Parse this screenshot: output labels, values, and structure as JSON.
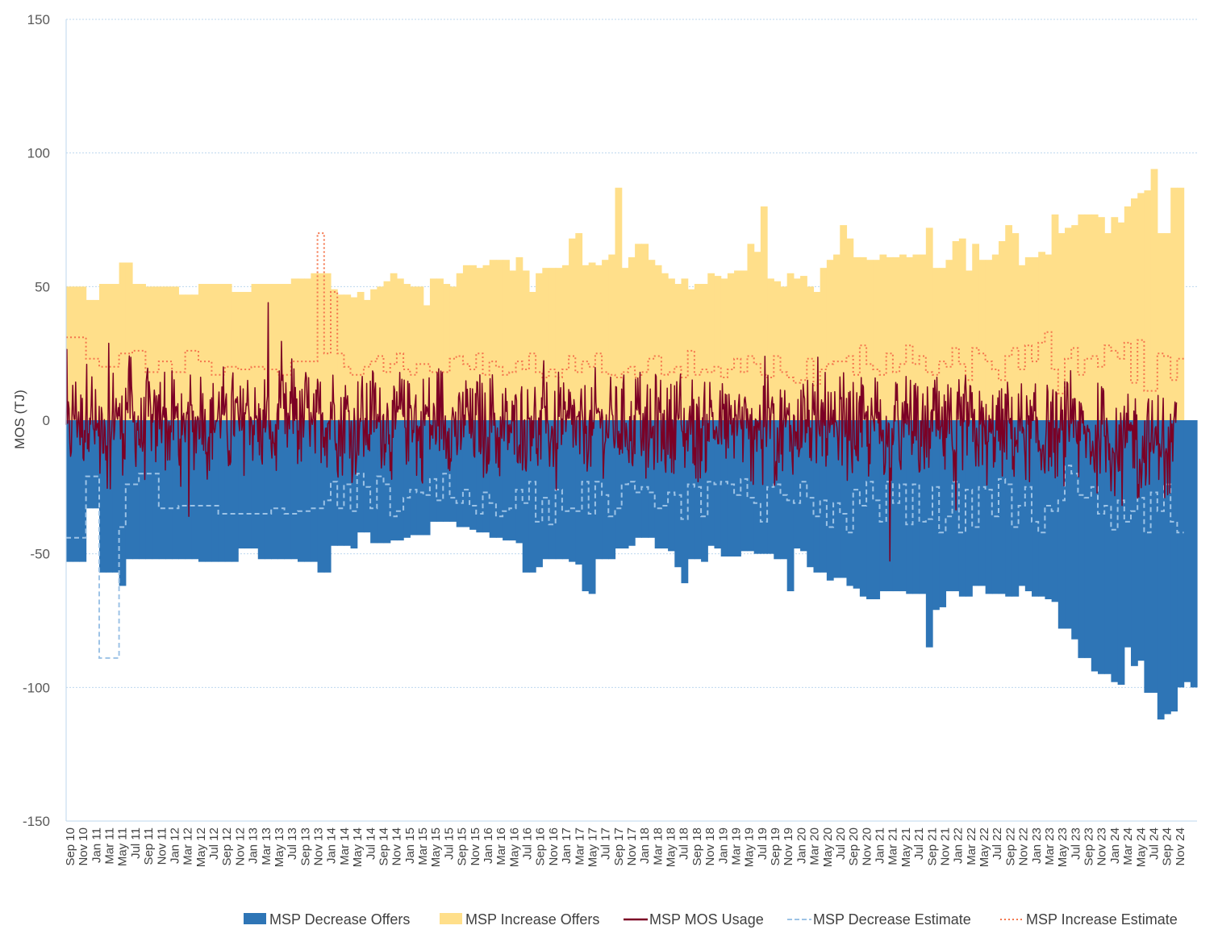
{
  "chart_data": {
    "type": "area",
    "title": "",
    "xlabel": "",
    "ylabel": "MOS (TJ)",
    "ylim": [
      -150,
      150
    ],
    "yticks": [
      150,
      100,
      50,
      0,
      -50,
      -100,
      -150
    ],
    "grid": true,
    "legend_position": "bottom-right",
    "x_tick_labels": [
      "Sep 10",
      "Nov 10",
      "Jan 11",
      "Mar 11",
      "May 11",
      "Jul 11",
      "Sep 11",
      "Nov 11",
      "Jan 12",
      "Mar 12",
      "May 12",
      "Jul 12",
      "Sep 12",
      "Nov 12",
      "Jan 13",
      "Mar 13",
      "May 13",
      "Jul 13",
      "Sep 13",
      "Nov 13",
      "Jan 14",
      "Mar 14",
      "May 14",
      "Jul 14",
      "Sep 14",
      "Nov 14",
      "Jan 15",
      "Mar 15",
      "May 15",
      "Jul 15",
      "Sep 15",
      "Nov 15",
      "Jan 16",
      "Mar 16",
      "May 16",
      "Jul 16",
      "Sep 16",
      "Nov 16",
      "Jan 17",
      "Mar 17",
      "May 17",
      "Jul 17",
      "Sep 17",
      "Nov 17",
      "Jan 18",
      "Mar 18",
      "May 18",
      "Jul 18",
      "Sep 18",
      "Nov 18",
      "Jan 19",
      "Mar 19",
      "May 19",
      "Jul 19",
      "Sep 19",
      "Nov 19",
      "Jan 20",
      "Mar 20",
      "May 20",
      "Jul 20",
      "Sep 20",
      "Nov 20",
      "Jan 21",
      "Mar 21",
      "May 21",
      "Jul 21",
      "Sep 21",
      "Nov 21",
      "Jan 22",
      "Mar 22",
      "May 22",
      "Jul 22",
      "Sep 22",
      "Nov 22",
      "Jan 23",
      "Mar 23",
      "May 23",
      "Jul 23",
      "Sep 23",
      "Nov 23",
      "Jan 24",
      "Mar 24",
      "May 24",
      "Jul 24",
      "Sep 24",
      "Nov 24"
    ],
    "series": [
      {
        "name": "MSP Decrease Offers",
        "style": "area",
        "color": "#2E75B6",
        "values": [
          -53,
          -53,
          -53,
          -33,
          -33,
          -57,
          -57,
          -57,
          -62,
          -52,
          -52,
          -52,
          -52,
          -52,
          -52,
          -52,
          -52,
          -52,
          -52,
          -52,
          -53,
          -53,
          -53,
          -53,
          -53,
          -53,
          -48,
          -48,
          -48,
          -52,
          -52,
          -52,
          -52,
          -52,
          -52,
          -53,
          -53,
          -53,
          -57,
          -57,
          -47,
          -47,
          -47,
          -48,
          -42,
          -42,
          -46,
          -46,
          -46,
          -45,
          -45,
          -44,
          -43,
          -43,
          -43,
          -38,
          -38,
          -38,
          -38,
          -40,
          -40,
          -41,
          -42,
          -42,
          -44,
          -44,
          -45,
          -45,
          -46,
          -57,
          -57,
          -55,
          -52,
          -52,
          -52,
          -52,
          -53,
          -54,
          -64,
          -65,
          -52,
          -52,
          -52,
          -48,
          -48,
          -47,
          -44,
          -44,
          -44,
          -48,
          -48,
          -49,
          -55,
          -61,
          -52,
          -52,
          -53,
          -47,
          -48,
          -51,
          -51,
          -51,
          -49,
          -49,
          -50,
          -50,
          -50,
          -52,
          -52,
          -64,
          -48,
          -49,
          -55,
          -57,
          -57,
          -60,
          -59,
          -59,
          -62,
          -63,
          -66,
          -67,
          -67,
          -64,
          -64,
          -64,
          -64,
          -65,
          -65,
          -65,
          -85,
          -71,
          -70,
          -64,
          -64,
          -66,
          -66,
          -62,
          -62,
          -65,
          -65,
          -65,
          -66,
          -66,
          -62,
          -64,
          -66,
          -66,
          -67,
          -68,
          -78,
          -78,
          -82,
          -89,
          -89,
          -94,
          -95,
          -95,
          -98,
          -99,
          -85,
          -92,
          -90,
          -102,
          -102,
          -112,
          -110,
          -109,
          -100,
          -98,
          -100
        ]
      },
      {
        "name": "MSP Increase Offers",
        "style": "area",
        "color": "#FFDF8A",
        "values": [
          50,
          50,
          50,
          45,
          45,
          51,
          51,
          51,
          59,
          59,
          51,
          51,
          50,
          50,
          50,
          50,
          50,
          47,
          47,
          47,
          51,
          51,
          51,
          51,
          51,
          48,
          48,
          48,
          51,
          51,
          51,
          51,
          51,
          51,
          53,
          53,
          53,
          55,
          55,
          55,
          49,
          47,
          47,
          46,
          48,
          45,
          49,
          50,
          52,
          55,
          53,
          51,
          50,
          50,
          43,
          53,
          53,
          51,
          50,
          55,
          58,
          58,
          57,
          58,
          60,
          60,
          60,
          56,
          61,
          56,
          48,
          55,
          57,
          57,
          57,
          58,
          68,
          70,
          58,
          59,
          58,
          60,
          62,
          87,
          57,
          61,
          66,
          66,
          60,
          58,
          55,
          53,
          51,
          53,
          49,
          51,
          51,
          55,
          54,
          53,
          55,
          56,
          56,
          66,
          63,
          80,
          53,
          52,
          50,
          55,
          53,
          54,
          50,
          48,
          57,
          60,
          62,
          73,
          68,
          61,
          61,
          60,
          60,
          62,
          61,
          61,
          62,
          61,
          62,
          62,
          72,
          57,
          57,
          60,
          67,
          68,
          56,
          66,
          60,
          60,
          62,
          67,
          73,
          70,
          58,
          61,
          61,
          63,
          62,
          77,
          70,
          72,
          73,
          77,
          77,
          77,
          76,
          70,
          76,
          74,
          80,
          83,
          85,
          86,
          94,
          70,
          70,
          87,
          87
        ]
      },
      {
        "name": "MSP Decrease Estimate",
        "style": "dashed",
        "color": "#9DC3E6",
        "values": [
          -44,
          -44,
          -44,
          -21,
          -21,
          -89,
          -89,
          -89,
          -40,
          -24,
          -24,
          -20,
          -20,
          -20,
          -33,
          -33,
          -33,
          -32,
          -32,
          -32,
          -32,
          -32,
          -32,
          -35,
          -35,
          -35,
          -35,
          -35,
          -35,
          -35,
          -35,
          -33,
          -33,
          -35,
          -35,
          -34,
          -34,
          -33,
          -33,
          -30,
          -23,
          -33,
          -24,
          -34,
          -20,
          -25,
          -33,
          -21,
          -24,
          -36,
          -34,
          -29,
          -26,
          -27,
          -28,
          -22,
          -30,
          -20,
          -29,
          -31,
          -26,
          -32,
          -35,
          -27,
          -31,
          -36,
          -34,
          -33,
          -26,
          -31,
          -23,
          -38,
          -29,
          -39,
          -26,
          -34,
          -33,
          -34,
          -23,
          -35,
          -23,
          -28,
          -36,
          -33,
          -24,
          -23,
          -27,
          -25,
          -27,
          -33,
          -32,
          -27,
          -28,
          -37,
          -24,
          -25,
          -36,
          -23,
          -24,
          -23,
          -24,
          -28,
          -22,
          -29,
          -31,
          -38,
          -25,
          -24,
          -28,
          -30,
          -31,
          -23,
          -29,
          -36,
          -30,
          -40,
          -31,
          -35,
          -42,
          -26,
          -32,
          -23,
          -30,
          -38,
          -23,
          -31,
          -24,
          -39,
          -24,
          -38,
          -37,
          -25,
          -42,
          -36,
          -23,
          -42,
          -26,
          -40,
          -25,
          -26,
          -36,
          -22,
          -24,
          -40,
          -32,
          -25,
          -38,
          -42,
          -32,
          -34,
          -30,
          -17,
          -20,
          -28,
          -29,
          -25,
          -35,
          -32,
          -41,
          -30,
          -38,
          -34,
          -29,
          -42,
          -27,
          -34,
          -24,
          -38,
          -42
        ]
      },
      {
        "name": "MSP Increase Estimate",
        "style": "dotted",
        "color": "#F4764D",
        "values": [
          31,
          31,
          31,
          23,
          23,
          20,
          20,
          20,
          25,
          25,
          26,
          26,
          18,
          18,
          22,
          22,
          18,
          18,
          26,
          26,
          22,
          22,
          17,
          17,
          20,
          20,
          19,
          19,
          20,
          20,
          19,
          19,
          17,
          17,
          22,
          22,
          22,
          22,
          70,
          25,
          48,
          25,
          20,
          17,
          17,
          20,
          22,
          24,
          18,
          21,
          25,
          19,
          17,
          21,
          21,
          18,
          17,
          18,
          23,
          24,
          21,
          19,
          25,
          17,
          22,
          20,
          17,
          18,
          22,
          19,
          25,
          18,
          16,
          19,
          16,
          19,
          24,
          18,
          22,
          20,
          25,
          18,
          17,
          16,
          18,
          20,
          16,
          18,
          23,
          24,
          17,
          18,
          20,
          16,
          26,
          17,
          19,
          18,
          20,
          16,
          19,
          23,
          18,
          24,
          21,
          17,
          16,
          24,
          18,
          16,
          14,
          15,
          23,
          13,
          19,
          21,
          22,
          22,
          24,
          17,
          28,
          21,
          19,
          17,
          25,
          18,
          21,
          28,
          21,
          24,
          18,
          17,
          22,
          20,
          27,
          21,
          15,
          27,
          25,
          22,
          19,
          15,
          24,
          27,
          19,
          28,
          22,
          29,
          33,
          19,
          10,
          23,
          27,
          17,
          23,
          24,
          20,
          28,
          26,
          23,
          29,
          14,
          30,
          11,
          11,
          25,
          24,
          15,
          23
        ]
      },
      {
        "name": "MSP MOS Usage",
        "style": "line",
        "color": "#7B0025",
        "values": [
          -5,
          3,
          -2,
          6,
          -4,
          1,
          -8,
          4,
          -3,
          7,
          -1,
          -6,
          2,
          -4,
          5,
          -3,
          1,
          -7,
          3,
          -2,
          6,
          -5,
          0,
          4,
          -6,
          2,
          -3,
          5,
          -1,
          -4,
          3,
          -7,
          1,
          -2,
          6,
          -3,
          4,
          -5,
          2,
          -1,
          5,
          -4,
          3,
          -6,
          1,
          -3,
          4,
          -2,
          0,
          -5,
          3,
          -1,
          4,
          -6,
          2,
          -3,
          5,
          -2,
          -1,
          -6,
          3,
          -4,
          1,
          -5,
          2,
          -7,
          -2,
          -4,
          0,
          -3,
          2,
          -6,
          -1,
          -5,
          3,
          -4,
          1,
          -6,
          -2,
          -5,
          2,
          -4,
          -1,
          -3,
          0,
          -5,
          3,
          -2,
          -6,
          1,
          -4,
          -2,
          3,
          -5,
          0,
          -6,
          -3,
          2,
          -4,
          -1,
          -5,
          1,
          -3,
          -7,
          0,
          -4,
          2,
          -6,
          -1,
          -3,
          -5,
          2,
          -2,
          -6,
          0,
          -4,
          -7,
          1,
          -5,
          -3,
          -2,
          -6,
          0,
          -4,
          -8,
          -2,
          -5,
          1,
          -3,
          -6,
          -4,
          -1,
          -7,
          -3,
          -5,
          -2,
          0,
          -6,
          -4,
          -8,
          -3,
          -5,
          -1,
          -7,
          -2,
          -6,
          -4,
          -9,
          -3,
          -5,
          -7,
          -2,
          -8,
          -4,
          -6,
          -10,
          -3,
          -5,
          -12,
          -6,
          -8,
          -4,
          -14,
          -7,
          -9,
          -5,
          -16,
          -8
        ],
        "noise_amplitude": 18
      }
    ]
  }
}
